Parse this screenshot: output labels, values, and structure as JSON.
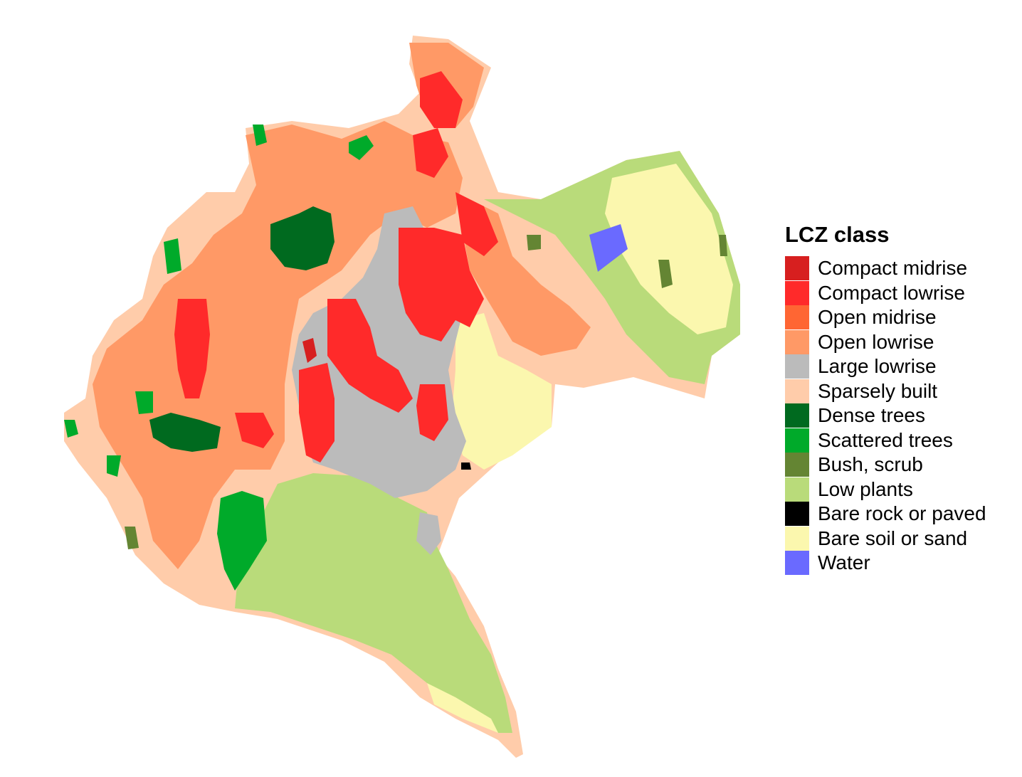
{
  "legend": {
    "title": "LCZ class",
    "items": [
      {
        "label": "Compact midrise",
        "color": "#d71f1f"
      },
      {
        "label": "Compact lowrise",
        "color": "#ff2a2a"
      },
      {
        "label": "Open midrise",
        "color": "#ff6633"
      },
      {
        "label": "Open lowrise",
        "color": "#ff9966"
      },
      {
        "label": "Large lowrise",
        "color": "#bbbbbb"
      },
      {
        "label": "Sparsely built",
        "color": "#ffccaa"
      },
      {
        "label": "Dense trees",
        "color": "#006a1f"
      },
      {
        "label": "Scattered trees",
        "color": "#00aa2a"
      },
      {
        "label": "Bush, scrub",
        "color": "#648533"
      },
      {
        "label": "Low plants",
        "color": "#b9db7a"
      },
      {
        "label": "Bare rock or paved",
        "color": "#000000"
      },
      {
        "label": "Bare soil or sand",
        "color": "#fbf7ae"
      },
      {
        "label": "Water",
        "color": "#6a6aff"
      }
    ]
  }
}
